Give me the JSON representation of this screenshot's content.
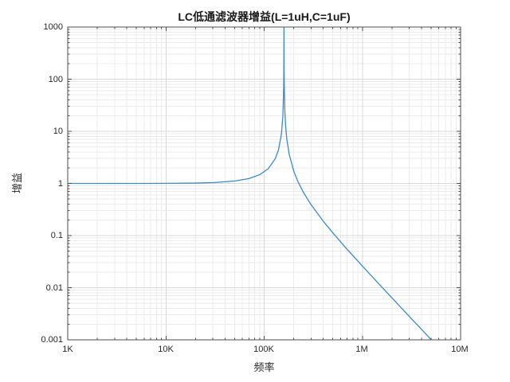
{
  "figure": {
    "background": "#ffffff",
    "title": "LC低通滤波器增益(L=1uH,C=1uF)",
    "xlabel": "频率",
    "ylabel": "增益"
  },
  "chart_data": {
    "type": "line",
    "title": "LC低通滤波器增益(L=1uH,C=1uF)",
    "xlabel": "频率",
    "ylabel": "增益",
    "xscale": "log",
    "yscale": "log",
    "xlim": [
      1000,
      10000000
    ],
    "ylim": [
      0.001,
      1000
    ],
    "xticks": [
      1000,
      10000,
      100000,
      1000000,
      10000000
    ],
    "xtick_labels": [
      "1K",
      "10K",
      "100K",
      "1M",
      "10M"
    ],
    "yticks_top_to_bottom": [
      1000,
      100,
      10,
      1,
      0.1,
      0.01,
      0.001
    ],
    "ytick_labels_top_to_bottom": [
      "1000",
      "100",
      "10",
      "1",
      "0.1",
      "0.01",
      "0.001"
    ],
    "grid": "major+minor",
    "legend": "none",
    "colors": {
      "line": "#3d8bc0",
      "axis": "#4d4d4d",
      "major_grid": "#d8d8d8",
      "minor_grid": "#ebebeb",
      "text": "#262626"
    },
    "series": [
      {
        "name": "gain",
        "x": [
          1000,
          2000,
          5000,
          10000,
          20000,
          30000,
          50000,
          70000,
          90000,
          110000,
          130000,
          140000,
          150000,
          155000,
          158000,
          158500,
          159000,
          159155,
          159500,
          160000,
          162000,
          165000,
          170000,
          180000,
          200000,
          220000,
          250000,
          300000,
          400000,
          500000,
          700000,
          1000000,
          1500000,
          2000000,
          3000000,
          4000000,
          5000000
        ],
        "y": [
          1.0,
          1.0002,
          1.001,
          1.004,
          1.016,
          1.037,
          1.11,
          1.24,
          1.47,
          1.915,
          3.004,
          4.419,
          8.949,
          19.48,
          69.3,
          121.7,
          515,
          1000,
          230.4,
          93.9,
          27.8,
          13.38,
          7.1,
          3.59,
          1.727,
          1.098,
          0.682,
          0.392,
          0.188,
          0.1128,
          0.0545,
          0.026,
          0.0114,
          0.00637,
          0.00282,
          0.00159,
          0.00101
        ]
      }
    ]
  }
}
